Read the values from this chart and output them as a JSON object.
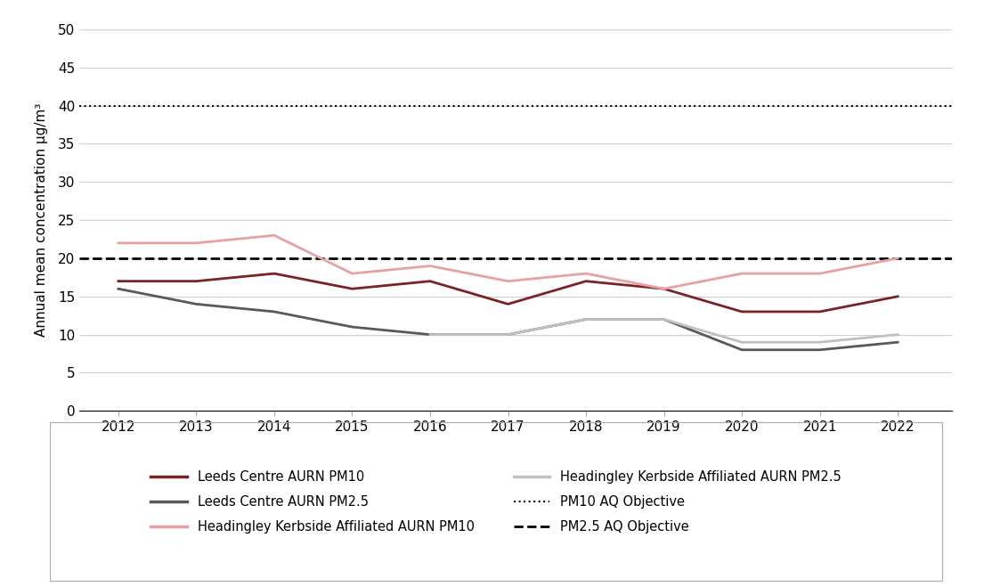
{
  "years": [
    2012,
    2013,
    2014,
    2015,
    2016,
    2017,
    2018,
    2019,
    2020,
    2021,
    2022
  ],
  "leeds_centre_pm10": [
    17,
    17,
    18,
    16,
    17,
    14,
    17,
    16,
    13,
    13,
    15
  ],
  "leeds_centre_pm25": [
    16,
    14,
    13,
    11,
    10,
    10,
    12,
    12,
    8,
    8,
    9
  ],
  "headingley_pm10": [
    22,
    22,
    23,
    18,
    19,
    17,
    18,
    16,
    18,
    18,
    20
  ],
  "headingley_pm25": [
    null,
    null,
    null,
    null,
    10,
    10,
    12,
    12,
    9,
    9,
    10
  ],
  "pm10_objective": 40,
  "pm25_objective": 20,
  "ylim": [
    0,
    50
  ],
  "yticks": [
    0,
    5,
    10,
    15,
    20,
    25,
    30,
    35,
    40,
    45,
    50
  ],
  "ylabel": "Annual mean concentration μg/m³",
  "color_leeds_pm10": "#7B2323",
  "color_leeds_pm25": "#595959",
  "color_headingley_pm10": "#E8A0A0",
  "color_headingley_pm25": "#C0C0C0",
  "legend_labels": [
    "Leeds Centre AURN PM10",
    "Leeds Centre AURN PM2.5",
    "Headingley Kerbside Affiliated AURN PM10",
    "Headingley Kerbside Affiliated AURN PM2.5",
    "PM10 AQ Objective",
    "PM2.5 AQ Objective"
  ],
  "background_color": "#ffffff",
  "grid_color": "#d0d0d0"
}
